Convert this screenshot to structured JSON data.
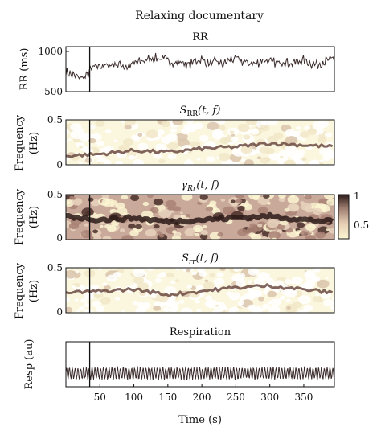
{
  "figure": {
    "title": "Relaxing documentary",
    "event_marker_time": 35,
    "xlabel": "Time (s)",
    "x_ticks": [
      "50",
      "100",
      "150",
      "200",
      "250",
      "300",
      "350"
    ],
    "colorbar": {
      "max_label": "1",
      "min_label": "0.5"
    }
  },
  "panels": {
    "rr": {
      "title": "RR",
      "ylabel": "RR (ms)",
      "y_ticks": [
        "1000",
        "500"
      ]
    },
    "s_rr": {
      "title_main": "S",
      "title_sub": "RR",
      "title_args": "(t, f)",
      "ylabel_line1": "Frequency",
      "ylabel_line2": "(Hz)",
      "y_ticks": [
        "0.5",
        "0"
      ]
    },
    "gamma": {
      "title_main": "γ",
      "title_sub": "Rr",
      "title_args": "(t, f)",
      "ylabel_line1": "Frequency",
      "ylabel_line2": "(Hz)",
      "y_ticks": [
        "0.5",
        "0"
      ]
    },
    "s_r": {
      "title_main": "S",
      "title_sub": "rr",
      "title_args": "(t, f)",
      "ylabel_line1": "Frequency",
      "ylabel_line2": "(Hz)",
      "y_ticks": [
        "0.5",
        "0"
      ]
    },
    "resp": {
      "title": "Respiration",
      "ylabel": "Resp (au)"
    }
  },
  "chart_data": [
    {
      "type": "line",
      "name": "RR",
      "xlim": [
        0,
        395
      ],
      "ylim": [
        500,
        1100
      ],
      "x": [
        0,
        10,
        20,
        30,
        35,
        40,
        50,
        60,
        70,
        80,
        90,
        100,
        110,
        120,
        130,
        140,
        150,
        160,
        170,
        180,
        190,
        200,
        210,
        220,
        230,
        240,
        250,
        260,
        270,
        280,
        290,
        300,
        310,
        320,
        330,
        340,
        350,
        360,
        370,
        380,
        390,
        395
      ],
      "values": [
        760,
        720,
        690,
        700,
        780,
        820,
        850,
        840,
        870,
        860,
        830,
        880,
        900,
        930,
        950,
        940,
        920,
        880,
        900,
        850,
        910,
        930,
        870,
        900,
        860,
        920,
        940,
        900,
        880,
        870,
        930,
        900,
        880,
        910,
        870,
        900,
        920,
        880,
        860,
        900,
        930,
        920
      ]
    },
    {
      "type": "heatmap",
      "name": "S_RR(t, f)",
      "xlim": [
        0,
        395
      ],
      "ylim": [
        0,
        0.5
      ],
      "dominant_frequency_ridge": {
        "x": [
          0,
          50,
          100,
          150,
          200,
          250,
          300,
          350,
          395
        ],
        "y": [
          0.1,
          0.12,
          0.16,
          0.14,
          0.18,
          0.2,
          0.24,
          0.22,
          0.2
        ]
      }
    },
    {
      "type": "heatmap",
      "name": "γ_Rr(t, f)",
      "xlim": [
        0,
        395
      ],
      "ylim": [
        0,
        0.5
      ],
      "colorbar_range": [
        0.5,
        1
      ],
      "dominant_frequency_ridge": {
        "x": [
          0,
          50,
          100,
          150,
          200,
          250,
          300,
          350,
          395
        ],
        "y": [
          0.26,
          0.22,
          0.24,
          0.2,
          0.22,
          0.24,
          0.26,
          0.22,
          0.2
        ]
      }
    },
    {
      "type": "heatmap",
      "name": "S_rr(t, f)",
      "xlim": [
        0,
        395
      ],
      "ylim": [
        0,
        0.5
      ],
      "dominant_frequency_ridge": {
        "x": [
          0,
          50,
          100,
          150,
          200,
          250,
          300,
          350,
          395
        ],
        "y": [
          0.22,
          0.24,
          0.26,
          0.2,
          0.24,
          0.28,
          0.3,
          0.26,
          0.22
        ]
      }
    },
    {
      "type": "line",
      "name": "Respiration",
      "xlim": [
        0,
        395
      ],
      "ylim": [
        0,
        1
      ],
      "oscillation_frequency_hz": 0.24,
      "mean": 0.3,
      "amplitude": 0.12
    }
  ]
}
